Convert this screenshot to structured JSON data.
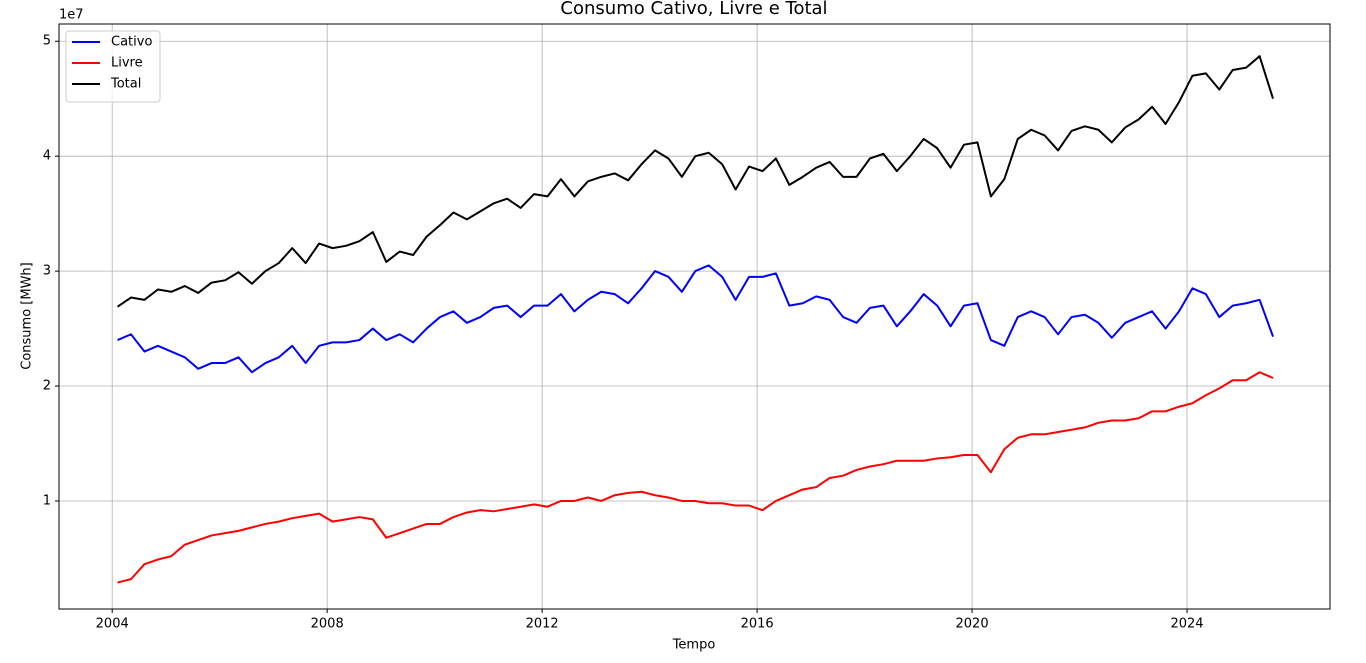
{
  "chart_data": {
    "type": "line",
    "title": "Consumo Cativo, Livre e Total",
    "x_label": "Tempo",
    "y_label": "Consumo [MWh]",
    "y_offset_label": "1e7",
    "x": [
      2004.1,
      2004.35,
      2004.6,
      2004.85,
      2005.1,
      2005.35,
      2005.6,
      2005.85,
      2006.1,
      2006.35,
      2006.6,
      2006.85,
      2007.1,
      2007.35,
      2007.6,
      2007.85,
      2008.1,
      2008.35,
      2008.6,
      2008.85,
      2009.1,
      2009.35,
      2009.6,
      2009.85,
      2010.1,
      2010.35,
      2010.6,
      2010.85,
      2011.1,
      2011.35,
      2011.6,
      2011.85,
      2012.1,
      2012.35,
      2012.6,
      2012.85,
      2013.1,
      2013.35,
      2013.6,
      2013.85,
      2014.1,
      2014.35,
      2014.6,
      2014.85,
      2015.1,
      2015.35,
      2015.6,
      2015.85,
      2016.1,
      2016.35,
      2016.6,
      2016.85,
      2017.1,
      2017.35,
      2017.6,
      2017.85,
      2018.1,
      2018.35,
      2018.6,
      2018.85,
      2019.1,
      2019.35,
      2019.6,
      2019.85,
      2020.1,
      2020.35,
      2020.6,
      2020.85,
      2021.1,
      2021.35,
      2021.6,
      2021.85,
      2022.1,
      2022.35,
      2022.6,
      2022.85,
      2023.1,
      2023.35,
      2023.6,
      2023.85,
      2024.1,
      2024.35,
      2024.6,
      2024.85,
      2025.1,
      2025.35,
      2025.6
    ],
    "series": [
      {
        "name": "Cativo",
        "color": "#0000ff",
        "values": [
          2.4,
          2.45,
          2.3,
          2.35,
          2.3,
          2.25,
          2.15,
          2.2,
          2.2,
          2.25,
          2.12,
          2.2,
          2.25,
          2.35,
          2.2,
          2.35,
          2.38,
          2.38,
          2.4,
          2.5,
          2.4,
          2.45,
          2.38,
          2.5,
          2.6,
          2.65,
          2.55,
          2.6,
          2.68,
          2.7,
          2.6,
          2.7,
          2.7,
          2.8,
          2.65,
          2.75,
          2.82,
          2.8,
          2.72,
          2.85,
          3.0,
          2.95,
          2.82,
          3.0,
          3.05,
          2.95,
          2.75,
          2.95,
          2.95,
          2.98,
          2.7,
          2.72,
          2.78,
          2.75,
          2.6,
          2.55,
          2.68,
          2.7,
          2.52,
          2.65,
          2.8,
          2.7,
          2.52,
          2.7,
          2.72,
          2.4,
          2.35,
          2.6,
          2.65,
          2.6,
          2.45,
          2.6,
          2.62,
          2.55,
          2.42,
          2.55,
          2.6,
          2.65,
          2.5,
          2.65,
          2.85,
          2.8,
          2.6,
          2.7,
          2.72,
          2.75,
          2.43
        ]
      },
      {
        "name": "Livre",
        "color": "#ff0000",
        "values": [
          0.29,
          0.32,
          0.45,
          0.49,
          0.52,
          0.62,
          0.66,
          0.7,
          0.72,
          0.74,
          0.77,
          0.8,
          0.82,
          0.85,
          0.87,
          0.89,
          0.82,
          0.84,
          0.86,
          0.84,
          0.68,
          0.72,
          0.76,
          0.8,
          0.8,
          0.86,
          0.9,
          0.92,
          0.91,
          0.93,
          0.95,
          0.97,
          0.95,
          1.0,
          1.0,
          1.03,
          1.0,
          1.05,
          1.07,
          1.08,
          1.05,
          1.03,
          1.0,
          1.0,
          0.98,
          0.98,
          0.96,
          0.96,
          0.92,
          1.0,
          1.05,
          1.1,
          1.12,
          1.2,
          1.22,
          1.27,
          1.3,
          1.32,
          1.35,
          1.35,
          1.35,
          1.37,
          1.38,
          1.4,
          1.4,
          1.25,
          1.45,
          1.55,
          1.58,
          1.58,
          1.6,
          1.62,
          1.64,
          1.68,
          1.7,
          1.7,
          1.72,
          1.78,
          1.78,
          1.82,
          1.85,
          1.92,
          1.98,
          2.05,
          2.05,
          2.12,
          2.07
        ]
      },
      {
        "name": "Total",
        "color": "#000000",
        "values": [
          2.69,
          2.77,
          2.75,
          2.84,
          2.82,
          2.87,
          2.81,
          2.9,
          2.92,
          2.99,
          2.89,
          3.0,
          3.07,
          3.2,
          3.07,
          3.24,
          3.2,
          3.22,
          3.26,
          3.34,
          3.08,
          3.17,
          3.14,
          3.3,
          3.4,
          3.51,
          3.45,
          3.52,
          3.59,
          3.63,
          3.55,
          3.67,
          3.65,
          3.8,
          3.65,
          3.78,
          3.82,
          3.85,
          3.79,
          3.93,
          4.05,
          3.98,
          3.82,
          4.0,
          4.03,
          3.93,
          3.71,
          3.91,
          3.87,
          3.98,
          3.75,
          3.82,
          3.9,
          3.95,
          3.82,
          3.82,
          3.98,
          4.02,
          3.87,
          4.0,
          4.15,
          4.07,
          3.9,
          4.1,
          4.12,
          3.65,
          3.8,
          4.15,
          4.23,
          4.18,
          4.05,
          4.22,
          4.26,
          4.23,
          4.12,
          4.25,
          4.32,
          4.43,
          4.28,
          4.47,
          4.7,
          4.72,
          4.58,
          4.75,
          4.77,
          4.87,
          4.5
        ]
      }
    ],
    "xlim": [
      2003.01,
      2026.66
    ],
    "xticks": [
      2004,
      2008,
      2012,
      2016,
      2020,
      2024
    ],
    "ylim": [
      0.06,
      5.15
    ],
    "yticks": [
      1,
      2,
      3,
      4,
      5
    ],
    "grid": true,
    "legend": "upper left"
  }
}
